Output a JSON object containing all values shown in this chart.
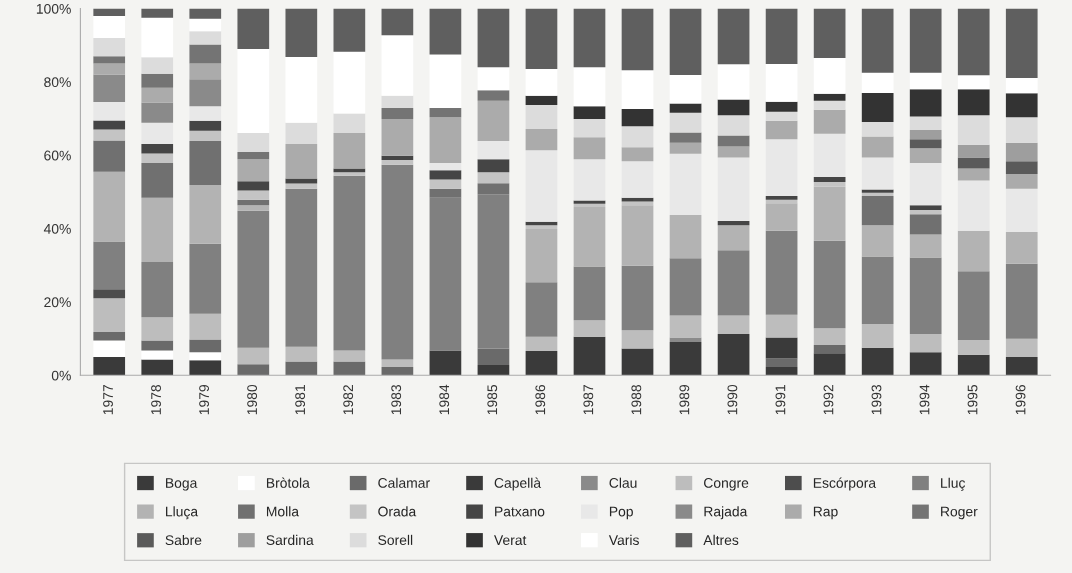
{
  "chart_data": {
    "type": "bar",
    "stacked": true,
    "legend": "bottom",
    "grid": false,
    "categories": [
      "1977",
      "1978",
      "1979",
      "1980",
      "1981",
      "1982",
      "1983",
      "1984",
      "1985",
      "1986",
      "1987",
      "1988",
      "1989",
      "1990",
      "1991",
      "1992",
      "1993",
      "1994",
      "1995",
      "1996"
    ],
    "ylim": [
      0,
      100
    ],
    "yticks": [
      {
        "value": 0,
        "label": "0%"
      },
      {
        "value": 20,
        "label": "20%"
      },
      {
        "value": 40,
        "label": "40%"
      },
      {
        "value": 60,
        "label": "60%"
      },
      {
        "value": 80,
        "label": "80%"
      },
      {
        "value": 100,
        "label": "100%"
      }
    ],
    "series": [
      {
        "name": "Boga",
        "color": "#3a3a3a",
        "values": [
          5,
          4.3,
          4.1,
          0,
          0,
          0,
          0,
          6.8,
          2.8,
          6.6,
          10.5,
          7.3,
          9.1,
          11.3,
          2.3,
          6,
          7.5,
          6.3,
          5.6,
          5
        ]
      },
      {
        "name": "Bròtola",
        "color": "#ffffff",
        "values": [
          4.5,
          2.5,
          2.2,
          0,
          0,
          0,
          0,
          0,
          0,
          0,
          0,
          0,
          0,
          0,
          0,
          0,
          0,
          0,
          0,
          0
        ]
      },
      {
        "name": "Calamar",
        "color": "#6a6a6a",
        "values": [
          2.3,
          2.7,
          3.5,
          3,
          3.8,
          3.8,
          2.3,
          0,
          4.5,
          0,
          0,
          0,
          0,
          0,
          2.3,
          2.3,
          0,
          0,
          0,
          0
        ]
      },
      {
        "name": "Capellà",
        "color": "#3a3a3a",
        "values": [
          0,
          0,
          0,
          0,
          0,
          0,
          0,
          0,
          0,
          0,
          0,
          0,
          0,
          0,
          5.7,
          0,
          0,
          0,
          0,
          0
        ]
      },
      {
        "name": "Clau",
        "color": "#8a8a8a",
        "values": [
          0,
          0,
          0,
          0,
          0,
          0,
          0,
          0,
          0,
          0,
          0,
          0,
          1.2,
          0,
          0,
          0,
          0,
          0,
          0,
          0
        ]
      },
      {
        "name": "Congre",
        "color": "#bdbdbd",
        "values": [
          9.2,
          6.3,
          7,
          4.5,
          4,
          3,
          2,
          0,
          0,
          3.9,
          4.5,
          5,
          6,
          5,
          6.2,
          4.5,
          6.5,
          5,
          4,
          5
        ]
      },
      {
        "name": "Escórpora",
        "color": "#4d4d4d",
        "values": [
          2.5,
          0,
          0,
          0,
          0,
          0,
          0,
          0,
          0,
          0,
          0,
          0,
          0,
          0,
          0,
          0,
          0,
          0,
          0,
          0
        ]
      },
      {
        "name": "Lluç",
        "color": "#808080",
        "values": [
          13,
          15.1,
          19.1,
          37.4,
          43.1,
          47.6,
          53.1,
          41.6,
          42.1,
          14.9,
          14.7,
          17.6,
          15.6,
          17.8,
          22.9,
          23.9,
          18.4,
          20.8,
          18.8,
          20.4
        ]
      },
      {
        "name": "Lluça",
        "color": "#b3b3b3",
        "values": [
          19,
          17.5,
          16,
          1.5,
          0,
          0,
          0,
          0,
          0,
          14.5,
          16.2,
          16.5,
          11.8,
          6.8,
          7.5,
          14.7,
          8.5,
          6.3,
          11,
          8.7
        ]
      },
      {
        "name": "Molla",
        "color": "#707070",
        "values": [
          8.5,
          9.5,
          12,
          1.5,
          0,
          0,
          0,
          2.5,
          3,
          0,
          0,
          0,
          0,
          0,
          0,
          0,
          8,
          5.5,
          0,
          0
        ]
      },
      {
        "name": "Orada",
        "color": "#c4c4c4",
        "values": [
          3,
          2.6,
          2.8,
          2.5,
          1.4,
          1,
          1.3,
          2.5,
          3,
          1,
          0.9,
          1,
          0,
          0,
          1,
          1.3,
          0.9,
          1.2,
          0,
          0
        ]
      },
      {
        "name": "Patxano",
        "color": "#454545",
        "values": [
          2.5,
          2.6,
          2.7,
          2.5,
          1.4,
          1,
          1.2,
          2.5,
          3.5,
          1,
          0.9,
          1,
          0,
          1.2,
          1,
          1.4,
          0.9,
          1.3,
          0,
          0
        ]
      },
      {
        "name": "Pop",
        "color": "#e8e8e8",
        "values": [
          5,
          5.8,
          4,
          0,
          0,
          0,
          0,
          2,
          5,
          19.5,
          11.2,
          10,
          16.7,
          17.3,
          15.5,
          11.8,
          8.7,
          11.5,
          13.7,
          11.8
        ]
      },
      {
        "name": "Rajada",
        "color": "#8a8a8a",
        "values": [
          7.5,
          5.5,
          7.3,
          0,
          0,
          0,
          0,
          0,
          0,
          0,
          0,
          0,
          0,
          0,
          0,
          0,
          0,
          0,
          0,
          0
        ]
      },
      {
        "name": "Rap",
        "color": "#ababab",
        "values": [
          3,
          4,
          4.3,
          6,
          9.4,
          9.7,
          10,
          12.5,
          11,
          5.8,
          6,
          3.8,
          3,
          3,
          5,
          6.5,
          5.7,
          4,
          3.3,
          4
        ]
      },
      {
        "name": "Roger",
        "color": "#747474",
        "values": [
          2,
          3.8,
          5.2,
          2,
          0,
          0,
          3,
          2.5,
          2.8,
          0,
          0,
          0,
          2.8,
          3,
          0,
          0,
          0,
          0,
          0,
          0
        ]
      },
      {
        "name": "Sabre",
        "color": "#5a5a5a",
        "values": [
          0,
          0,
          0,
          0,
          0,
          0,
          0,
          0,
          0,
          0,
          0,
          0,
          0,
          0,
          0,
          0,
          0,
          2.5,
          3,
          3.5
        ]
      },
      {
        "name": "Sardina",
        "color": "#9e9e9e",
        "values": [
          0,
          0,
          0,
          0,
          0,
          0,
          0,
          0,
          0,
          0,
          0,
          0,
          0,
          0,
          0,
          0,
          0,
          2.5,
          3.5,
          5
        ]
      },
      {
        "name": "Sorell",
        "color": "#dcdcdc",
        "values": [
          5,
          4.5,
          3.6,
          5.2,
          5.8,
          5.3,
          3.3,
          0,
          0,
          6.5,
          5,
          5.7,
          5.4,
          5.5,
          2.5,
          2.5,
          4,
          3.7,
          8,
          7
        ]
      },
      {
        "name": "Verat",
        "color": "#333333",
        "values": [
          0,
          0,
          0,
          0,
          0,
          0,
          0,
          0,
          0,
          2.5,
          3.5,
          4.7,
          2.5,
          4.3,
          2.7,
          1.9,
          7.9,
          7.4,
          7.1,
          6.5
        ]
      },
      {
        "name": "Varis",
        "color": "#ffffff",
        "values": [
          6,
          10.8,
          3.4,
          22.9,
          17.9,
          16.8,
          16.5,
          14.6,
          6.3,
          7.3,
          10.6,
          10.6,
          7.8,
          9.6,
          10.3,
          9.7,
          5.5,
          4.5,
          3.8,
          4.2
        ]
      },
      {
        "name": "Altres",
        "color": "#5f5f5f",
        "values": [
          2,
          2.5,
          2.8,
          11,
          13.2,
          11.8,
          7.3,
          12.5,
          16,
          16.5,
          16,
          16.8,
          18.1,
          15.2,
          15.1,
          13.5,
          17.5,
          17.5,
          18.2,
          18.9
        ]
      }
    ]
  }
}
